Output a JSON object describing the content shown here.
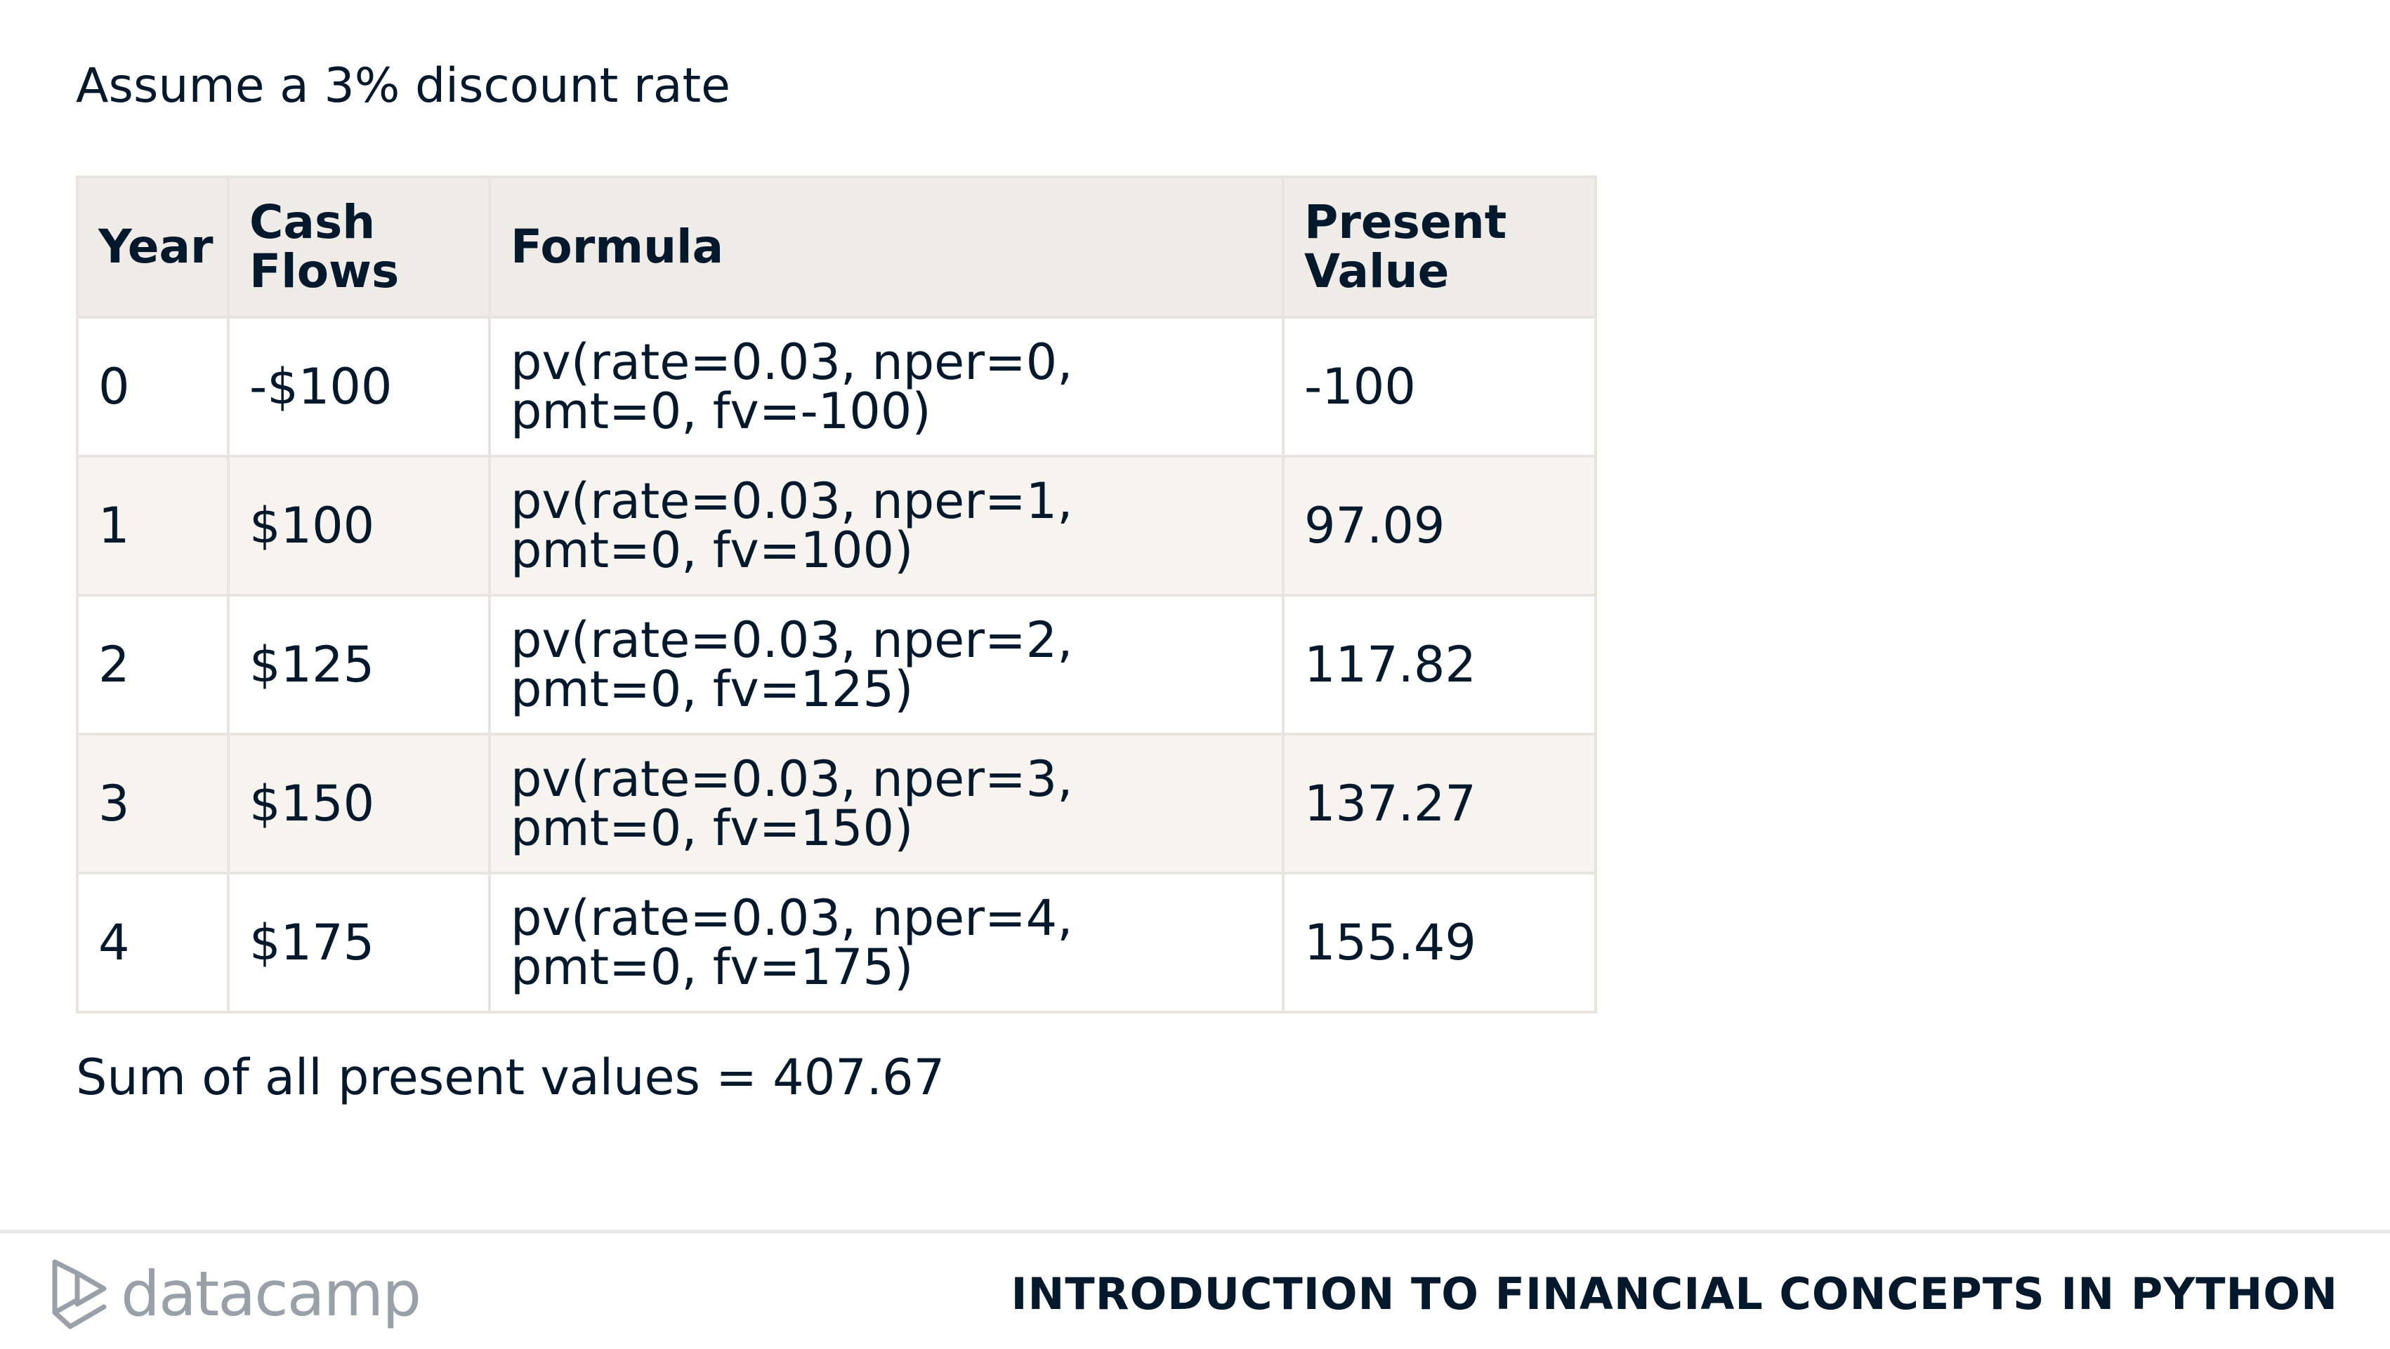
{
  "intro_text": "Assume a 3% discount rate",
  "table": {
    "headers": {
      "year": "Year",
      "cash_flows": "Cash Flows",
      "formula": "Formula",
      "present_value": "Present Value"
    },
    "rows": [
      {
        "year": "0",
        "cash_flow": "-$100",
        "formula": "pv(rate=0.03, nper=0, pmt=0, fv=-100)",
        "present_value": "-100"
      },
      {
        "year": "1",
        "cash_flow": "$100",
        "formula": "pv(rate=0.03, nper=1, pmt=0, fv=100)",
        "present_value": "97.09"
      },
      {
        "year": "2",
        "cash_flow": "$125",
        "formula": "pv(rate=0.03, nper=2, pmt=0, fv=125)",
        "present_value": "117.82"
      },
      {
        "year": "3",
        "cash_flow": "$150",
        "formula": "pv(rate=0.03, nper=3, pmt=0, fv=150)",
        "present_value": "137.27"
      },
      {
        "year": "4",
        "cash_flow": "$175",
        "formula": "pv(rate=0.03, nper=4, pmt=0, fv=175)",
        "present_value": "155.49"
      }
    ]
  },
  "sum_text": "Sum of all present values = 407.67",
  "footer": {
    "logo_icon": "datacamp-logo-icon",
    "logo_text": "datacamp",
    "course_title": "INTRODUCTION TO FINANCIAL CONCEPTS IN PYTHON"
  },
  "colors": {
    "text": "#05192d",
    "header_bg": "#efebe6",
    "row_alt_bg": "#f7f3ee",
    "border": "#e8e4df",
    "logo_gray": "#9aa0a7"
  }
}
